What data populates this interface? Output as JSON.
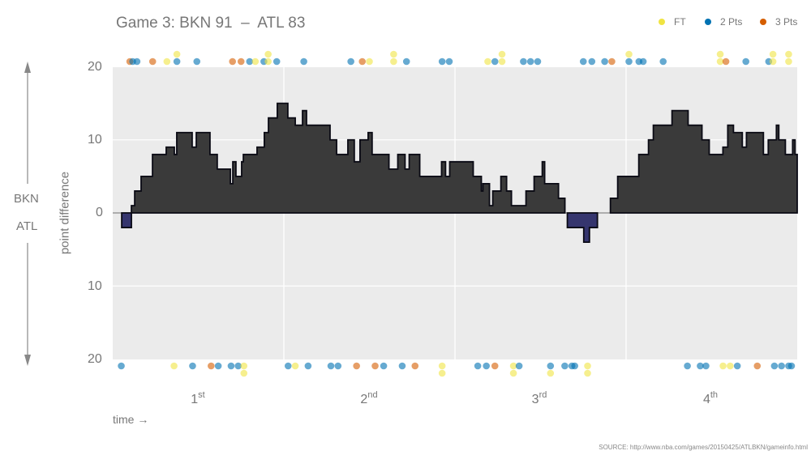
{
  "title": "Game 3: BKN 91  –  ATL 83",
  "legend": [
    {
      "label": "FT",
      "color": "#f0e442"
    },
    {
      "label": "2 Pts",
      "color": "#0072b2"
    },
    {
      "label": "3 Pts",
      "color": "#d55e00"
    }
  ],
  "side_labels": {
    "top_team": "BKN",
    "bottom_team": "ATL"
  },
  "y_axis_label": "point difference",
  "x_axis_label": "time →",
  "source": "SOURCE: http://www.nba.com/games/20150425/ATLBKN/gameinfo.html",
  "quarters": [
    {
      "num": "1",
      "suffix": "st"
    },
    {
      "num": "2",
      "suffix": "nd"
    },
    {
      "num": "3",
      "suffix": "rd"
    },
    {
      "num": "4",
      "suffix": "th"
    }
  ],
  "y_ticks": [
    {
      "label": "20",
      "value": 20
    },
    {
      "label": "10",
      "value": 10
    },
    {
      "label": "0",
      "value": 0
    },
    {
      "label": "10",
      "value": -10
    },
    {
      "label": "20",
      "value": -20
    }
  ],
  "chart_data": {
    "type": "area",
    "title": "Game 3: BKN 91 – ATL 83",
    "xlabel": "time →",
    "ylabel": "point difference",
    "ylim": [
      -20,
      20
    ],
    "xlim": [
      0,
      48
    ],
    "x_unit": "minutes (approx., step function of score margin; positive = BKN lead)",
    "x_categories": [
      "1st",
      "2nd",
      "3rd",
      "4th"
    ],
    "grid": true,
    "legend_position": "top-right",
    "colors": {
      "bkn_lead": "#3a3a3a",
      "atl_lead": "#35356e",
      "panel": "#ebebeb"
    },
    "steps": [
      [
        0.0,
        0
      ],
      [
        0.63,
        -2
      ],
      [
        1.31,
        1
      ],
      [
        1.54,
        3
      ],
      [
        1.99,
        5
      ],
      [
        2.79,
        8
      ],
      [
        3.75,
        9
      ],
      [
        4.32,
        8
      ],
      [
        4.49,
        11
      ],
      [
        5.57,
        9
      ],
      [
        5.86,
        11
      ],
      [
        6.82,
        8
      ],
      [
        7.33,
        6
      ],
      [
        8.25,
        4
      ],
      [
        8.42,
        7
      ],
      [
        8.64,
        5
      ],
      [
        9.04,
        7
      ],
      [
        9.16,
        8
      ],
      [
        9.61,
        8
      ],
      [
        10.12,
        9
      ],
      [
        10.63,
        11
      ],
      [
        10.92,
        13
      ],
      [
        11.54,
        15
      ],
      [
        12.28,
        13
      ],
      [
        12.8,
        12
      ],
      [
        13.31,
        14
      ],
      [
        13.59,
        12
      ],
      [
        15.24,
        10
      ],
      [
        15.7,
        8
      ],
      [
        16.49,
        10
      ],
      [
        16.94,
        7
      ],
      [
        17.34,
        10
      ],
      [
        17.91,
        11
      ],
      [
        18.19,
        8
      ],
      [
        19.37,
        6
      ],
      [
        19.99,
        8
      ],
      [
        20.5,
        6
      ],
      [
        20.79,
        8
      ],
      [
        21.53,
        5
      ],
      [
        23.06,
        7
      ],
      [
        23.34,
        5
      ],
      [
        23.63,
        7
      ],
      [
        25.28,
        5
      ],
      [
        25.85,
        3
      ],
      [
        25.96,
        4
      ],
      [
        26.42,
        1
      ],
      [
        26.65,
        3
      ],
      [
        27.22,
        5
      ],
      [
        27.62,
        3
      ],
      [
        27.96,
        1
      ],
      [
        28.98,
        3
      ],
      [
        29.55,
        5
      ],
      [
        30.12,
        7
      ],
      [
        30.29,
        4
      ],
      [
        31.26,
        2
      ],
      [
        31.71,
        0
      ],
      [
        31.88,
        -2
      ],
      [
        33.03,
        -4
      ],
      [
        33.43,
        -2
      ],
      [
        33.99,
        0
      ],
      [
        34.9,
        2
      ],
      [
        35.41,
        5
      ],
      [
        36.89,
        8
      ],
      [
        37.57,
        10
      ],
      [
        37.91,
        12
      ],
      [
        39.22,
        14
      ],
      [
        40.35,
        12
      ],
      [
        41.32,
        10
      ],
      [
        41.83,
        8
      ],
      [
        42.79,
        9
      ],
      [
        43.13,
        12
      ],
      [
        43.53,
        11
      ],
      [
        44.15,
        9
      ],
      [
        44.44,
        11
      ],
      [
        45.63,
        8
      ],
      [
        45.97,
        10
      ],
      [
        46.54,
        12
      ],
      [
        46.71,
        10
      ],
      [
        47.17,
        8
      ],
      [
        47.68,
        10
      ],
      [
        47.85,
        8
      ],
      [
        48.0,
        8
      ]
    ],
    "scoring_events": {
      "note": "Dots above panel = BKN scores, below = ATL scores; x positions in minutes (approx.)",
      "bkn": [
        {
          "t": 1.2,
          "type": "3"
        },
        {
          "t": 1.4,
          "type": "2"
        },
        {
          "t": 1.7,
          "type": "2"
        },
        {
          "t": 2.8,
          "type": "3"
        },
        {
          "t": 3.8,
          "type": "FT"
        },
        {
          "t": 4.5,
          "type": "2"
        },
        {
          "t": 4.5,
          "type": "FT"
        },
        {
          "t": 5.9,
          "type": "2"
        },
        {
          "t": 8.4,
          "type": "3"
        },
        {
          "t": 9.0,
          "type": "3"
        },
        {
          "t": 9.6,
          "type": "2"
        },
        {
          "t": 10.0,
          "type": "FT"
        },
        {
          "t": 10.6,
          "type": "2"
        },
        {
          "t": 10.9,
          "type": "FT"
        },
        {
          "t": 10.9,
          "type": "FT"
        },
        {
          "t": 11.5,
          "type": "2"
        },
        {
          "t": 13.4,
          "type": "2"
        },
        {
          "t": 16.7,
          "type": "2"
        },
        {
          "t": 17.5,
          "type": "3"
        },
        {
          "t": 18.0,
          "type": "FT"
        },
        {
          "t": 19.7,
          "type": "FT"
        },
        {
          "t": 19.7,
          "type": "FT"
        },
        {
          "t": 20.6,
          "type": "2"
        },
        {
          "t": 23.1,
          "type": "2"
        },
        {
          "t": 23.6,
          "type": "2"
        },
        {
          "t": 26.3,
          "type": "FT"
        },
        {
          "t": 26.8,
          "type": "2"
        },
        {
          "t": 27.3,
          "type": "FT"
        },
        {
          "t": 27.3,
          "type": "FT"
        },
        {
          "t": 28.8,
          "type": "2"
        },
        {
          "t": 29.3,
          "type": "2"
        },
        {
          "t": 29.8,
          "type": "2"
        },
        {
          "t": 33.0,
          "type": "2"
        },
        {
          "t": 33.6,
          "type": "2"
        },
        {
          "t": 34.5,
          "type": "2"
        },
        {
          "t": 35.0,
          "type": "3"
        },
        {
          "t": 36.2,
          "type": "2"
        },
        {
          "t": 36.2,
          "type": "FT"
        },
        {
          "t": 36.9,
          "type": "2"
        },
        {
          "t": 37.2,
          "type": "2"
        },
        {
          "t": 38.6,
          "type": "2"
        },
        {
          "t": 42.6,
          "type": "FT"
        },
        {
          "t": 42.6,
          "type": "FT"
        },
        {
          "t": 43.0,
          "type": "3"
        },
        {
          "t": 44.4,
          "type": "2"
        },
        {
          "t": 46.0,
          "type": "2"
        },
        {
          "t": 46.3,
          "type": "FT"
        },
        {
          "t": 46.3,
          "type": "FT"
        },
        {
          "t": 47.4,
          "type": "FT"
        },
        {
          "t": 47.4,
          "type": "FT"
        }
      ],
      "atl": [
        {
          "t": 0.6,
          "type": "2"
        },
        {
          "t": 4.3,
          "type": "FT"
        },
        {
          "t": 5.6,
          "type": "2"
        },
        {
          "t": 6.9,
          "type": "3"
        },
        {
          "t": 7.4,
          "type": "2"
        },
        {
          "t": 8.3,
          "type": "2"
        },
        {
          "t": 8.8,
          "type": "2"
        },
        {
          "t": 9.2,
          "type": "FT"
        },
        {
          "t": 9.2,
          "type": "FT"
        },
        {
          "t": 12.3,
          "type": "2"
        },
        {
          "t": 12.8,
          "type": "FT"
        },
        {
          "t": 13.7,
          "type": "2"
        },
        {
          "t": 15.3,
          "type": "2"
        },
        {
          "t": 15.8,
          "type": "2"
        },
        {
          "t": 17.1,
          "type": "3"
        },
        {
          "t": 18.4,
          "type": "3"
        },
        {
          "t": 19.0,
          "type": "2"
        },
        {
          "t": 20.3,
          "type": "2"
        },
        {
          "t": 21.2,
          "type": "3"
        },
        {
          "t": 23.1,
          "type": "FT"
        },
        {
          "t": 23.1,
          "type": "FT"
        },
        {
          "t": 25.6,
          "type": "2"
        },
        {
          "t": 26.2,
          "type": "2"
        },
        {
          "t": 26.8,
          "type": "3"
        },
        {
          "t": 28.1,
          "type": "FT"
        },
        {
          "t": 28.1,
          "type": "FT"
        },
        {
          "t": 28.5,
          "type": "2"
        },
        {
          "t": 30.7,
          "type": "2"
        },
        {
          "t": 30.7,
          "type": "FT"
        },
        {
          "t": 31.7,
          "type": "2"
        },
        {
          "t": 32.2,
          "type": "2"
        },
        {
          "t": 32.4,
          "type": "2"
        },
        {
          "t": 33.3,
          "type": "FT"
        },
        {
          "t": 33.3,
          "type": "FT"
        },
        {
          "t": 40.3,
          "type": "2"
        },
        {
          "t": 41.2,
          "type": "2"
        },
        {
          "t": 41.6,
          "type": "2"
        },
        {
          "t": 42.8,
          "type": "FT"
        },
        {
          "t": 43.3,
          "type": "FT"
        },
        {
          "t": 43.8,
          "type": "2"
        },
        {
          "t": 45.2,
          "type": "3"
        },
        {
          "t": 46.4,
          "type": "2"
        },
        {
          "t": 46.9,
          "type": "2"
        },
        {
          "t": 47.4,
          "type": "2"
        },
        {
          "t": 47.6,
          "type": "2"
        }
      ]
    }
  }
}
